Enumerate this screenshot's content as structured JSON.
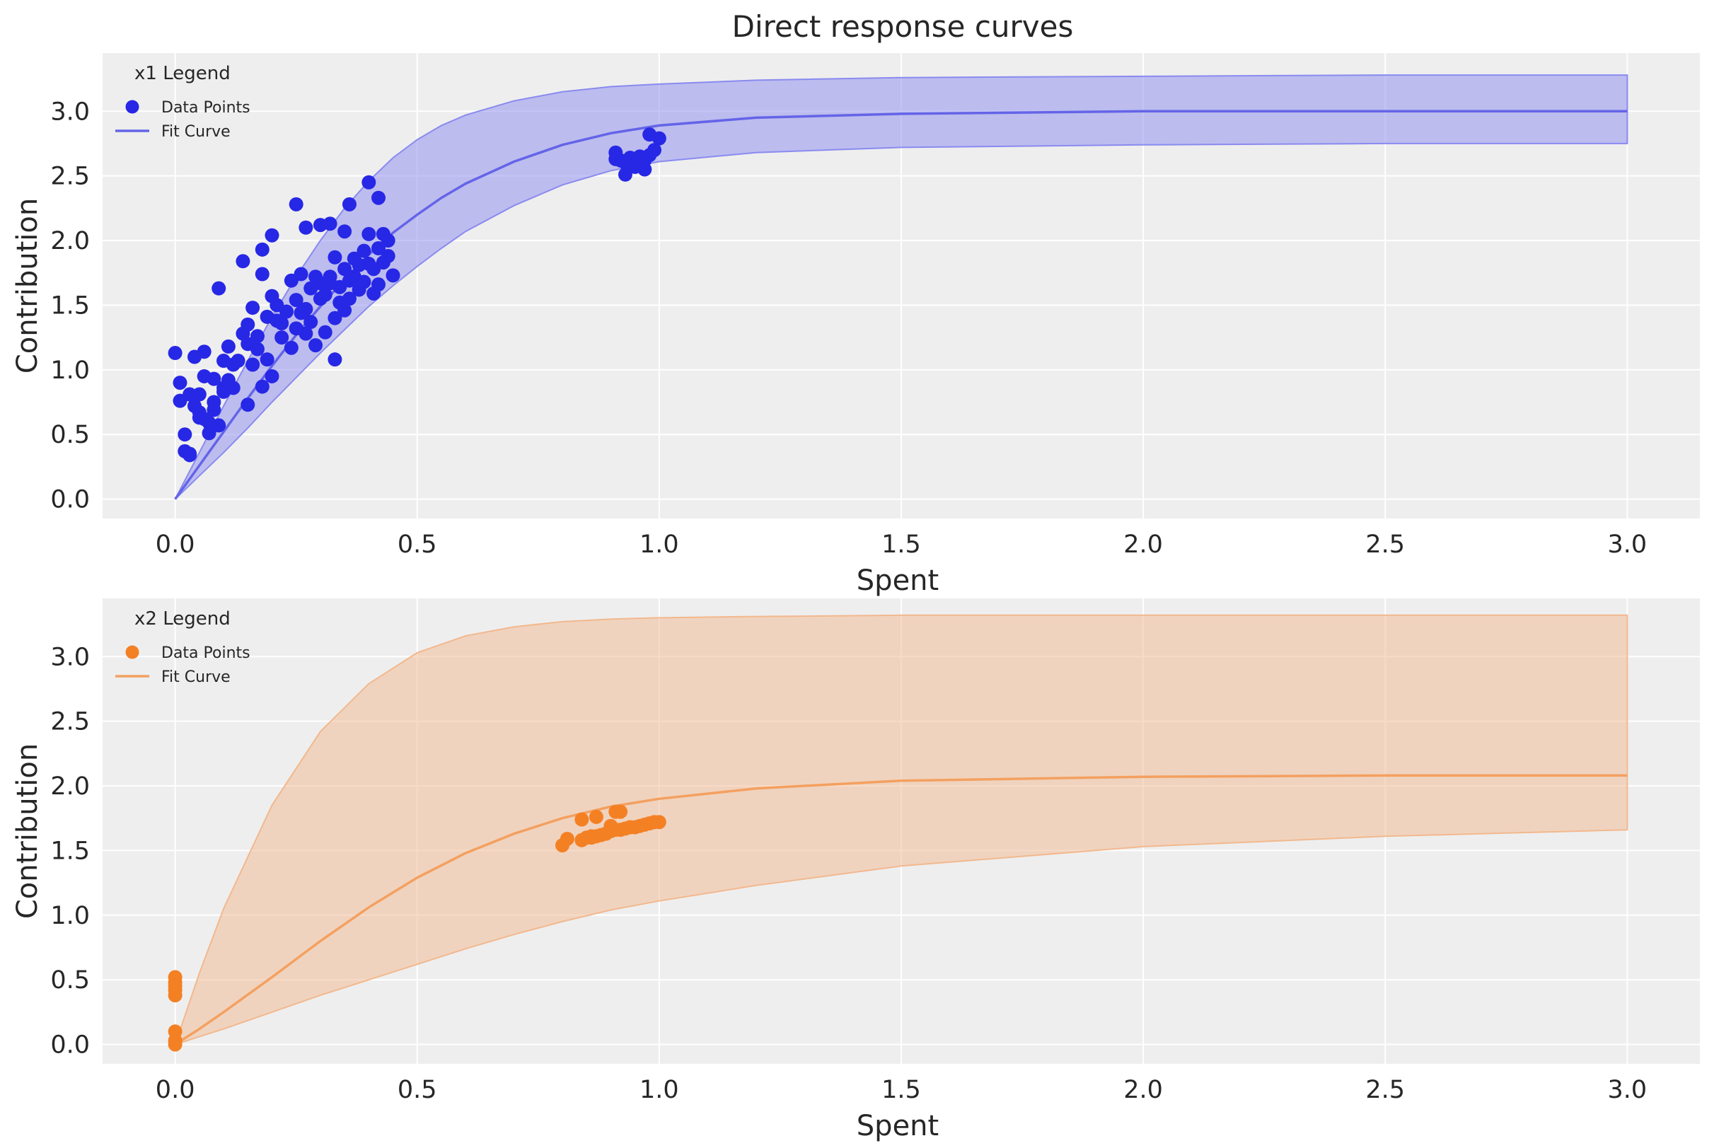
{
  "figure_title": "Direct response curves",
  "chart_data": [
    {
      "type": "scatter",
      "name": "x1",
      "title": "Direct response curves",
      "xlabel": "Spent",
      "ylabel": "Contribution",
      "xlim": [
        -0.15,
        3.15
      ],
      "ylim": [
        -0.15,
        3.45
      ],
      "xticks": [
        0.0,
        0.5,
        1.0,
        1.5,
        2.0,
        2.5,
        3.0
      ],
      "xtick_labels": [
        "0.0",
        "0.5",
        "1.0",
        "1.5",
        "2.0",
        "2.5",
        "3.0"
      ],
      "yticks": [
        0.0,
        0.5,
        1.0,
        1.5,
        2.0,
        2.5,
        3.0
      ],
      "ytick_labels": [
        "0.0",
        "0.5",
        "1.0",
        "1.5",
        "2.0",
        "2.5",
        "3.0"
      ],
      "grid": true,
      "legend": {
        "title": "x1 Legend",
        "position": "top-left",
        "entries": [
          "Data Points",
          "Fit Curve"
        ]
      },
      "colors": {
        "points": "#2727e6",
        "line": "#6464e8",
        "band": "#8a8af0"
      },
      "fit_curve": {
        "x": [
          0.0,
          0.05,
          0.1,
          0.15,
          0.2,
          0.25,
          0.3,
          0.35,
          0.4,
          0.45,
          0.5,
          0.55,
          0.6,
          0.7,
          0.8,
          0.9,
          1.0,
          1.2,
          1.5,
          2.0,
          2.5,
          3.0
        ],
        "y": [
          0.0,
          0.26,
          0.52,
          0.78,
          1.03,
          1.27,
          1.49,
          1.7,
          1.89,
          2.06,
          2.2,
          2.33,
          2.44,
          2.61,
          2.74,
          2.83,
          2.89,
          2.95,
          2.98,
          3.0,
          3.0,
          3.0
        ],
        "lower": [
          0.0,
          0.18,
          0.36,
          0.55,
          0.75,
          0.94,
          1.13,
          1.31,
          1.49,
          1.65,
          1.8,
          1.94,
          2.07,
          2.27,
          2.43,
          2.54,
          2.61,
          2.68,
          2.72,
          2.74,
          2.75,
          2.75
        ],
        "upper": [
          0.0,
          0.36,
          0.72,
          1.07,
          1.41,
          1.72,
          2.0,
          2.25,
          2.46,
          2.64,
          2.78,
          2.89,
          2.97,
          3.08,
          3.15,
          3.19,
          3.21,
          3.24,
          3.26,
          3.27,
          3.28,
          3.28
        ]
      },
      "points": {
        "x": [
          0.0,
          0.01,
          0.01,
          0.02,
          0.02,
          0.03,
          0.03,
          0.04,
          0.04,
          0.05,
          0.05,
          0.06,
          0.06,
          0.07,
          0.07,
          0.08,
          0.08,
          0.09,
          0.09,
          0.1,
          0.1,
          0.11,
          0.11,
          0.12,
          0.13,
          0.14,
          0.15,
          0.15,
          0.16,
          0.16,
          0.17,
          0.17,
          0.18,
          0.18,
          0.19,
          0.19,
          0.2,
          0.2,
          0.21,
          0.21,
          0.22,
          0.23,
          0.24,
          0.24,
          0.25,
          0.25,
          0.26,
          0.26,
          0.27,
          0.27,
          0.28,
          0.28,
          0.29,
          0.29,
          0.3,
          0.3,
          0.31,
          0.31,
          0.32,
          0.32,
          0.33,
          0.33,
          0.34,
          0.34,
          0.35,
          0.35,
          0.36,
          0.36,
          0.37,
          0.37,
          0.38,
          0.38,
          0.39,
          0.39,
          0.4,
          0.4,
          0.41,
          0.41,
          0.42,
          0.42,
          0.43,
          0.43,
          0.44,
          0.44,
          0.45,
          0.12,
          0.08,
          0.14,
          0.18,
          0.2,
          0.25,
          0.3,
          0.32,
          0.36,
          0.4,
          0.42,
          0.35,
          0.22,
          0.27,
          0.33,
          0.15,
          0.05,
          0.03,
          0.06,
          0.1,
          0.91,
          0.92,
          0.93,
          0.94,
          0.95,
          0.96,
          0.97,
          0.98,
          0.99,
          1.0,
          0.93,
          0.95,
          0.98,
          0.97,
          0.91
        ],
        "y": [
          1.13,
          0.9,
          0.76,
          0.5,
          0.37,
          0.81,
          0.35,
          0.72,
          1.1,
          0.81,
          0.67,
          0.95,
          1.14,
          0.59,
          0.51,
          0.75,
          0.93,
          1.63,
          0.57,
          1.07,
          0.86,
          0.92,
          1.18,
          0.86,
          1.07,
          1.28,
          1.2,
          1.35,
          1.48,
          1.04,
          1.26,
          1.16,
          0.87,
          1.74,
          1.08,
          1.41,
          1.57,
          0.95,
          1.38,
          1.5,
          1.25,
          1.45,
          1.69,
          1.17,
          1.32,
          1.54,
          1.44,
          1.74,
          1.28,
          1.47,
          1.63,
          1.37,
          1.72,
          1.19,
          1.55,
          1.67,
          1.29,
          1.58,
          1.72,
          1.67,
          1.4,
          1.87,
          1.52,
          1.64,
          1.46,
          1.78,
          1.55,
          1.69,
          1.72,
          1.86,
          1.62,
          1.81,
          1.68,
          1.92,
          1.82,
          2.05,
          1.78,
          1.59,
          1.94,
          1.66,
          1.83,
          2.05,
          2.0,
          1.88,
          1.73,
          1.04,
          0.69,
          1.84,
          1.93,
          2.04,
          2.28,
          2.12,
          2.13,
          2.28,
          2.45,
          2.33,
          2.07,
          1.36,
          2.1,
          1.08,
          0.73,
          0.63,
          0.34,
          0.62,
          0.83,
          2.68,
          2.62,
          2.51,
          2.64,
          2.58,
          2.65,
          2.55,
          2.82,
          2.7,
          2.79,
          2.6,
          2.57,
          2.66,
          2.62,
          2.63
        ]
      }
    },
    {
      "type": "scatter",
      "name": "x2",
      "xlabel": "Spent",
      "ylabel": "Contribution",
      "xlim": [
        -0.15,
        3.15
      ],
      "ylim": [
        -0.15,
        3.45
      ],
      "xticks": [
        0.0,
        0.5,
        1.0,
        1.5,
        2.0,
        2.5,
        3.0
      ],
      "xtick_labels": [
        "0.0",
        "0.5",
        "1.0",
        "1.5",
        "2.0",
        "2.5",
        "3.0"
      ],
      "yticks": [
        0.0,
        0.5,
        1.0,
        1.5,
        2.0,
        2.5,
        3.0
      ],
      "ytick_labels": [
        "0.0",
        "0.5",
        "1.0",
        "1.5",
        "2.0",
        "2.5",
        "3.0"
      ],
      "grid": true,
      "legend": {
        "title": "x2 Legend",
        "position": "top-left",
        "entries": [
          "Data Points",
          "Fit Curve"
        ]
      },
      "colors": {
        "points": "#f48024",
        "line": "#f4a060",
        "band": "#f2b88e"
      },
      "fit_curve": {
        "x": [
          0.0,
          0.05,
          0.1,
          0.2,
          0.3,
          0.4,
          0.5,
          0.6,
          0.7,
          0.8,
          0.9,
          1.0,
          1.2,
          1.5,
          2.0,
          2.5,
          3.0
        ],
        "y": [
          0.0,
          0.12,
          0.25,
          0.52,
          0.8,
          1.06,
          1.29,
          1.48,
          1.63,
          1.75,
          1.84,
          1.9,
          1.98,
          2.04,
          2.07,
          2.08,
          2.08
        ],
        "lower": [
          0.0,
          0.06,
          0.12,
          0.25,
          0.38,
          0.5,
          0.62,
          0.74,
          0.85,
          0.95,
          1.04,
          1.11,
          1.23,
          1.38,
          1.53,
          1.61,
          1.66
        ],
        "upper": [
          0.0,
          0.55,
          1.05,
          1.85,
          2.42,
          2.79,
          3.03,
          3.16,
          3.23,
          3.27,
          3.29,
          3.3,
          3.31,
          3.32,
          3.32,
          3.32,
          3.32
        ]
      },
      "points": {
        "x": [
          0.0,
          0.0,
          0.0,
          0.0,
          0.0,
          0.0,
          0.0,
          0.0,
          0.8,
          0.81,
          0.84,
          0.85,
          0.86,
          0.87,
          0.88,
          0.89,
          0.9,
          0.91,
          0.92,
          0.93,
          0.94,
          0.95,
          0.96,
          0.97,
          0.98,
          0.99,
          1.0,
          0.84,
          0.87,
          0.91,
          0.92,
          0.86,
          0.9
        ],
        "y": [
          0.0,
          0.03,
          0.1,
          0.38,
          0.42,
          0.45,
          0.48,
          0.52,
          1.54,
          1.59,
          1.58,
          1.6,
          1.6,
          1.61,
          1.62,
          1.63,
          1.65,
          1.66,
          1.66,
          1.67,
          1.68,
          1.68,
          1.69,
          1.7,
          1.71,
          1.72,
          1.72,
          1.74,
          1.76,
          1.8,
          1.8,
          1.61,
          1.69
        ]
      }
    }
  ]
}
